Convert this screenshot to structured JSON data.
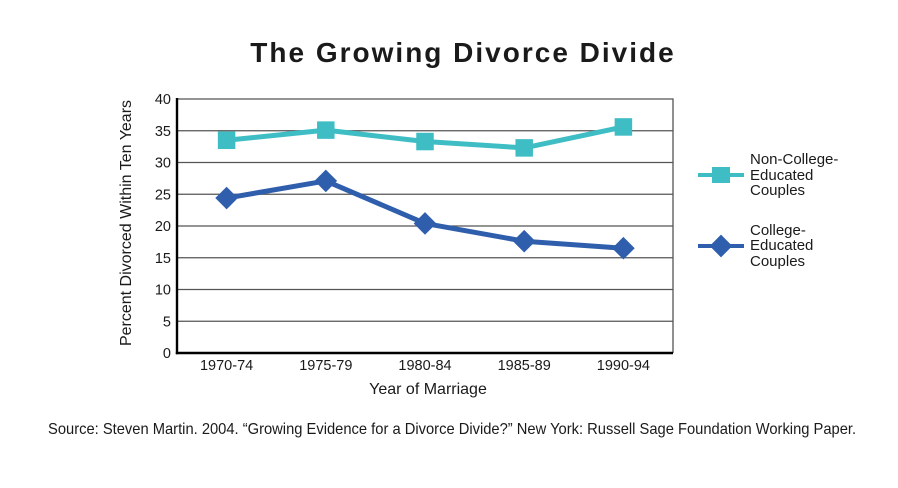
{
  "chart_data": {
    "type": "line",
    "title": "The Growing Divorce Divide",
    "xlabel": "Year of Marriage",
    "ylabel": "Percent Divorced Within Ten Years",
    "categories": [
      "1970-74",
      "1975-79",
      "1980-84",
      "1985-89",
      "1990-94"
    ],
    "series": [
      {
        "name": "Non-College-Educated Couples",
        "marker": "square",
        "color": "#3EBEC4",
        "values": [
          33.5,
          35.1,
          33.3,
          32.3,
          35.6
        ]
      },
      {
        "name": "College-Educated Couples",
        "marker": "diamond",
        "color": "#2F5FAC",
        "values": [
          24.4,
          27.1,
          20.4,
          17.6,
          16.5
        ]
      }
    ],
    "ylim": [
      0,
      40
    ],
    "yticks": [
      0,
      5,
      10,
      15,
      20,
      25,
      30,
      35,
      40
    ],
    "grid": true,
    "legend_position": "right",
    "grid_color": "#555555",
    "axis_color": "#000000",
    "text_color": "#1a1a1a"
  },
  "legend": {
    "items": [
      {
        "lines": [
          "Non-College-",
          "Educated",
          "Couples"
        ]
      },
      {
        "lines": [
          "College-",
          "Educated",
          "Couples"
        ]
      }
    ]
  },
  "source": "Source: Steven Martin. 2004. “Growing Evidence for a Divorce Divide?” New York: Russell Sage Foundation Working Paper."
}
